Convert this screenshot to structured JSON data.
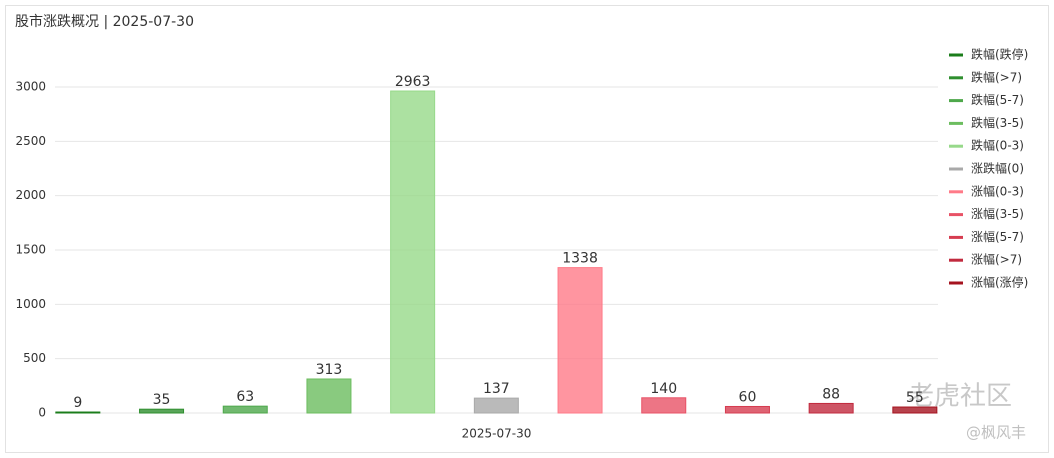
{
  "chart_data": {
    "type": "bar",
    "title": "股市涨跌概况 | 2025-07-30",
    "categories": [
      "2025-07-30"
    ],
    "series": [
      {
        "name": "跌幅(跌停)",
        "color": "#1b7d1b",
        "values": [
          9
        ]
      },
      {
        "name": "跌幅(>7)",
        "color": "#2f8f2f",
        "values": [
          35
        ]
      },
      {
        "name": "跌幅(5-7)",
        "color": "#4ea84b",
        "values": [
          63
        ]
      },
      {
        "name": "跌幅(3-5)",
        "color": "#6cbd5f",
        "values": [
          313
        ]
      },
      {
        "name": "跌幅(0-3)",
        "color": "#97d98a",
        "values": [
          2963
        ]
      },
      {
        "name": "涨跌幅(0)",
        "color": "#a9a9a9",
        "values": [
          137
        ]
      },
      {
        "name": "涨幅(0-3)",
        "color": "#ff7a88",
        "values": [
          1338
        ]
      },
      {
        "name": "涨幅(3-5)",
        "color": "#e85266",
        "values": [
          140
        ]
      },
      {
        "name": "涨幅(5-7)",
        "color": "#d63c50",
        "values": [
          60
        ]
      },
      {
        "name": "涨幅(>7)",
        "color": "#c12a3e",
        "values": [
          88
        ]
      },
      {
        "name": "涨幅(涨停)",
        "color": "#a5131f",
        "values": [
          55
        ]
      }
    ],
    "ylim": [
      0,
      3000
    ],
    "yticks": [
      0,
      500,
      1000,
      1500,
      2000,
      2500,
      3000
    ],
    "grid": true,
    "legend": "right"
  },
  "watermark": {
    "brand": "老虎社区",
    "credit": "@枫风丰"
  }
}
